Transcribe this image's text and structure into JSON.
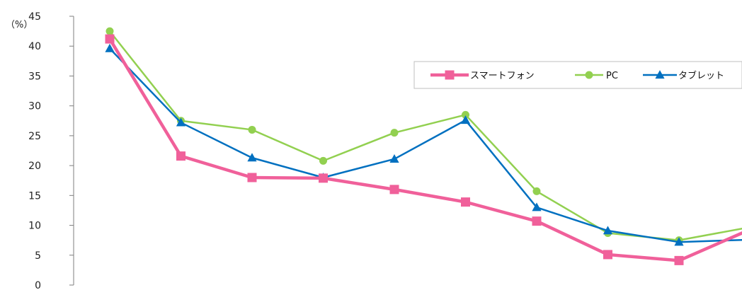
{
  "chart_data": {
    "type": "line",
    "title": "",
    "xlabel": "",
    "ylabel": "",
    "unit_label": "（%）",
    "ylim": [
      0,
      45
    ],
    "yticks": [
      0,
      5,
      10,
      15,
      20,
      25,
      30,
      35,
      40,
      45
    ],
    "grid": false,
    "legend": "top-right",
    "x": [
      1,
      2,
      3,
      4,
      5,
      6,
      7,
      8,
      9,
      10
    ],
    "series": [
      {
        "name": "スマートフォン",
        "color": "#f0609a",
        "marker": "square",
        "values": [
          41.2,
          21.6,
          18.0,
          17.9,
          16.0,
          13.9,
          10.7,
          5.1,
          4.1,
          9.3
        ]
      },
      {
        "name": "PC",
        "color": "#92d050",
        "marker": "circle",
        "values": [
          42.5,
          27.5,
          26.0,
          20.8,
          25.5,
          28.5,
          15.7,
          8.7,
          7.5,
          9.7
        ]
      },
      {
        "name": "タブレット",
        "color": "#0070c0",
        "marker": "triangle",
        "values": [
          39.6,
          27.2,
          21.3,
          18.0,
          21.1,
          27.6,
          13.0,
          9.1,
          7.2,
          7.6
        ]
      }
    ]
  }
}
